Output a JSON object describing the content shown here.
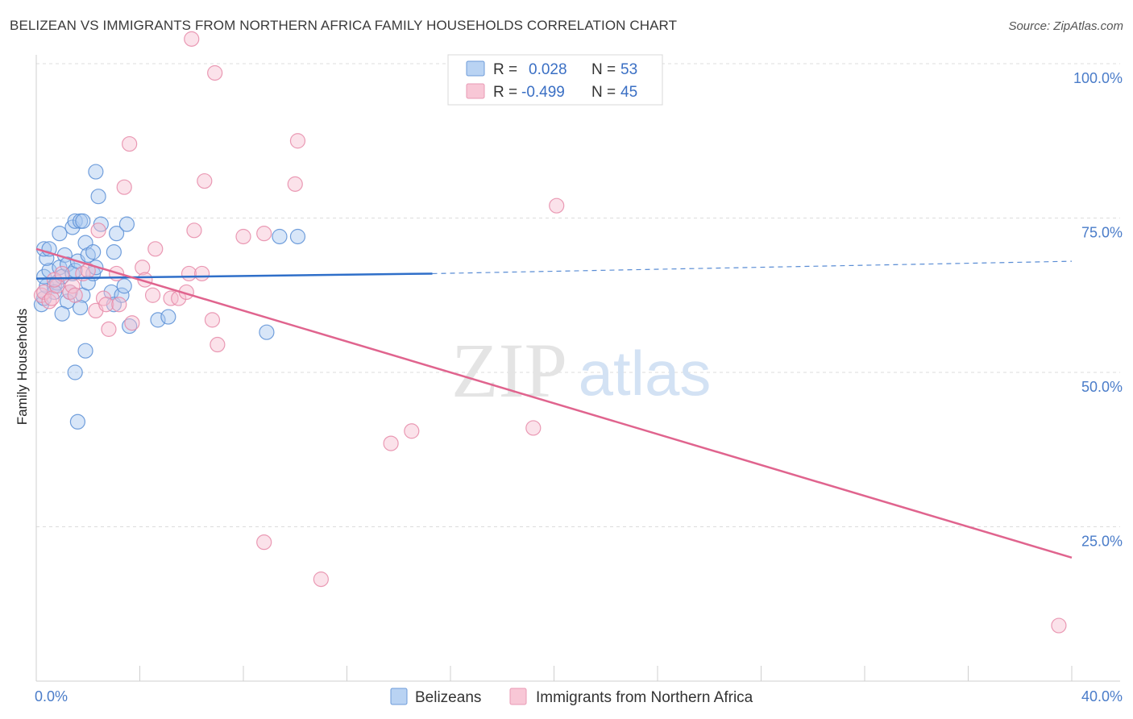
{
  "title": "BELIZEAN VS IMMIGRANTS FROM NORTHERN AFRICA FAMILY HOUSEHOLDS CORRELATION CHART",
  "source": "Source: ZipAtlas.com",
  "watermark": {
    "zip": "ZIP",
    "atlas": "atlas"
  },
  "colors": {
    "blue_fill": "#a9c8f0",
    "blue_stroke": "#5b8fd6",
    "blue_line": "#2f6fc9",
    "pink_fill": "#f6bfd1",
    "pink_stroke": "#e68aa8",
    "pink_line": "#e0648e",
    "grid": "#dcdcdc",
    "axis_label": "#4a7cc9"
  },
  "legend": {
    "r_label": "R =",
    "n_label": "N =",
    "rows": [
      {
        "r": "0.028",
        "n": "53"
      },
      {
        "r": "-0.499",
        "n": "45"
      }
    ]
  },
  "chart_data": {
    "type": "scatter",
    "title": "BELIZEAN VS IMMIGRANTS FROM NORTHERN AFRICA FAMILY HOUSEHOLDS CORRELATION CHART",
    "xlabel": "",
    "ylabel": "Family Households",
    "xlim": [
      0,
      40
    ],
    "ylim": [
      0,
      105
    ],
    "x_tick_labels": [
      "0.0%",
      "40.0%"
    ],
    "y_ticks": [
      25,
      50,
      75,
      100
    ],
    "y_tick_labels": [
      "25.0%",
      "50.0%",
      "75.0%",
      "100.0%"
    ],
    "legend_position": "bottom",
    "series": [
      {
        "name": "Belizeans",
        "color": "blue",
        "r": 0.028,
        "n": 53,
        "trend": {
          "x0": 0,
          "y0": 65.2,
          "x1": 15.3,
          "y1": 66.0,
          "dash_x1": 40,
          "dash_y1": 68.0
        },
        "points": [
          [
            0.2,
            61
          ],
          [
            0.3,
            62
          ],
          [
            0.4,
            64
          ],
          [
            0.3,
            65.5
          ],
          [
            0.5,
            66.5
          ],
          [
            0.4,
            68.5
          ],
          [
            0.3,
            70
          ],
          [
            0.5,
            70
          ],
          [
            0.7,
            64
          ],
          [
            0.8,
            64.5
          ],
          [
            0.7,
            63
          ],
          [
            0.9,
            67
          ],
          [
            1.0,
            65.5
          ],
          [
            1.1,
            69
          ],
          [
            0.9,
            72.5
          ],
          [
            1.2,
            61.5
          ],
          [
            1.3,
            63
          ],
          [
            1.2,
            67.5
          ],
          [
            1.4,
            66
          ],
          [
            1.5,
            66.5
          ],
          [
            1.6,
            68
          ],
          [
            1.4,
            73.5
          ],
          [
            1.5,
            74.5
          ],
          [
            1.7,
            74.5
          ],
          [
            1.8,
            74.5
          ],
          [
            1.9,
            71
          ],
          [
            2.0,
            69
          ],
          [
            1.8,
            62.5
          ],
          [
            1.7,
            60.5
          ],
          [
            2.0,
            64.5
          ],
          [
            2.2,
            66
          ],
          [
            2.3,
            67
          ],
          [
            2.2,
            69.5
          ],
          [
            2.5,
            74
          ],
          [
            2.4,
            78.5
          ],
          [
            2.3,
            82.5
          ],
          [
            2.9,
            63
          ],
          [
            3.0,
            61
          ],
          [
            3.0,
            69.5
          ],
          [
            3.1,
            72.5
          ],
          [
            3.3,
            62.5
          ],
          [
            3.4,
            64
          ],
          [
            3.5,
            74
          ],
          [
            3.6,
            57.5
          ],
          [
            4.7,
            58.5
          ],
          [
            5.1,
            59
          ],
          [
            1.0,
            59.5
          ],
          [
            1.5,
            50
          ],
          [
            1.9,
            53.5
          ],
          [
            1.6,
            42
          ],
          [
            8.9,
            56.5
          ],
          [
            9.4,
            72
          ],
          [
            10.1,
            72
          ]
        ]
      },
      {
        "name": "Immigrants from Northern Africa",
        "color": "pink",
        "r": -0.499,
        "n": 45,
        "trend": {
          "x0": 0,
          "y0": 70.0,
          "x1": 40,
          "y1": 20.0
        },
        "points": [
          [
            0.2,
            62.5
          ],
          [
            0.3,
            63
          ],
          [
            0.5,
            61.5
          ],
          [
            0.6,
            62
          ],
          [
            0.8,
            64
          ],
          [
            0.7,
            65
          ],
          [
            1.0,
            66
          ],
          [
            1.3,
            63
          ],
          [
            1.4,
            64
          ],
          [
            1.5,
            62.5
          ],
          [
            1.8,
            66
          ],
          [
            2.0,
            66.5
          ],
          [
            2.3,
            60
          ],
          [
            2.4,
            73
          ],
          [
            2.6,
            62
          ],
          [
            2.7,
            61
          ],
          [
            2.8,
            57
          ],
          [
            3.1,
            66
          ],
          [
            3.2,
            61
          ],
          [
            3.4,
            80
          ],
          [
            3.6,
            87
          ],
          [
            3.7,
            58
          ],
          [
            4.1,
            67
          ],
          [
            4.2,
            65
          ],
          [
            4.5,
            62.5
          ],
          [
            4.6,
            70
          ],
          [
            5.2,
            62
          ],
          [
            5.5,
            62
          ],
          [
            5.8,
            63
          ],
          [
            5.9,
            66
          ],
          [
            6.1,
            73
          ],
          [
            6.5,
            81
          ],
          [
            6.8,
            58.5
          ],
          [
            6.4,
            66
          ],
          [
            6.0,
            104
          ],
          [
            6.9,
            98.5
          ],
          [
            7.0,
            54.5
          ],
          [
            8.0,
            72
          ],
          [
            8.8,
            72.5
          ],
          [
            10.0,
            80.5
          ],
          [
            10.1,
            87.5
          ],
          [
            11.0,
            16.5
          ],
          [
            8.8,
            22.5
          ],
          [
            13.7,
            38.5
          ],
          [
            14.5,
            40.5
          ]
        ],
        "extra_points": [
          [
            19.2,
            41
          ],
          [
            20.1,
            77
          ],
          [
            39.5,
            9
          ]
        ]
      }
    ]
  },
  "bottom_legend": {
    "items": [
      {
        "label": "Belizeans"
      },
      {
        "label": "Immigrants from Northern Africa"
      }
    ]
  }
}
